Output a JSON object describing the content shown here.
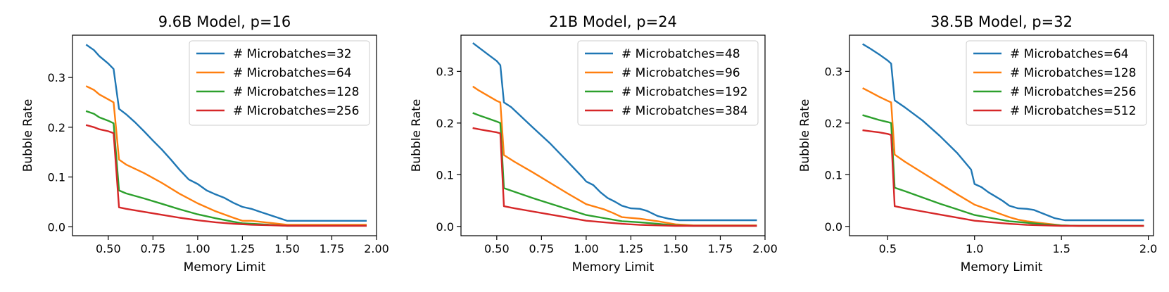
{
  "colors": {
    "blue": "#1f77b4",
    "orange": "#ff7f0e",
    "green": "#2ca02c",
    "red": "#d62728"
  },
  "chart_data": [
    {
      "type": "line",
      "title": "9.6B Model, p=16",
      "xlabel": "Memory Limit",
      "ylabel": "Bubble Rate",
      "xlim": [
        0.3,
        2.0
      ],
      "ylim": [
        -0.018,
        0.385
      ],
      "xticks": [
        0.5,
        0.75,
        1.0,
        1.25,
        1.5,
        1.75,
        2.0
      ],
      "xtick_labels": [
        "0.50",
        "0.75",
        "1.00",
        "1.25",
        "1.50",
        "1.75",
        "2.00"
      ],
      "yticks": [
        0.0,
        0.1,
        0.2,
        0.3
      ],
      "ytick_labels": [
        "0.0",
        "0.1",
        "0.2",
        "0.3"
      ],
      "legend_position": "top-right",
      "series": [
        {
          "name": "# Microbatches=32",
          "color": "#1f77b4",
          "x": [
            0.38,
            0.42,
            0.45,
            0.5,
            0.53,
            0.56,
            0.6,
            0.65,
            0.7,
            0.75,
            0.8,
            0.85,
            0.9,
            0.95,
            1.0,
            1.05,
            1.1,
            1.15,
            1.2,
            1.25,
            1.3,
            1.35,
            1.4,
            1.45,
            1.5,
            1.6,
            1.7,
            1.8,
            1.94
          ],
          "y": [
            0.365,
            0.355,
            0.343,
            0.328,
            0.317,
            0.237,
            0.226,
            0.21,
            0.192,
            0.173,
            0.155,
            0.135,
            0.114,
            0.095,
            0.086,
            0.073,
            0.065,
            0.058,
            0.048,
            0.04,
            0.036,
            0.03,
            0.024,
            0.018,
            0.012,
            0.012,
            0.012,
            0.012,
            0.012
          ]
        },
        {
          "name": "# Microbatches=64",
          "color": "#ff7f0e",
          "x": [
            0.38,
            0.42,
            0.45,
            0.5,
            0.53,
            0.56,
            0.6,
            0.7,
            0.8,
            0.9,
            1.0,
            1.1,
            1.2,
            1.25,
            1.3,
            1.4,
            1.5,
            1.6,
            1.8,
            1.94
          ],
          "y": [
            0.282,
            0.275,
            0.266,
            0.256,
            0.25,
            0.135,
            0.125,
            0.108,
            0.088,
            0.066,
            0.047,
            0.031,
            0.018,
            0.012,
            0.012,
            0.008,
            0.004,
            0.004,
            0.004,
            0.004
          ]
        },
        {
          "name": "# Microbatches=128",
          "color": "#2ca02c",
          "x": [
            0.38,
            0.42,
            0.45,
            0.5,
            0.53,
            0.56,
            0.6,
            0.7,
            0.8,
            0.9,
            1.0,
            1.1,
            1.2,
            1.25,
            1.3,
            1.4,
            1.5,
            1.6,
            1.8,
            1.94
          ],
          "y": [
            0.232,
            0.227,
            0.22,
            0.213,
            0.208,
            0.073,
            0.067,
            0.057,
            0.046,
            0.035,
            0.025,
            0.017,
            0.01,
            0.007,
            0.006,
            0.004,
            0.002,
            0.002,
            0.002,
            0.002
          ]
        },
        {
          "name": "# Microbatches=256",
          "color": "#d62728",
          "x": [
            0.38,
            0.42,
            0.45,
            0.5,
            0.53,
            0.56,
            0.6,
            0.7,
            0.8,
            0.9,
            1.0,
            1.1,
            1.2,
            1.3,
            1.4,
            1.5,
            1.6,
            1.8,
            1.94
          ],
          "y": [
            0.204,
            0.2,
            0.196,
            0.192,
            0.188,
            0.039,
            0.036,
            0.03,
            0.024,
            0.018,
            0.013,
            0.009,
            0.006,
            0.004,
            0.003,
            0.002,
            0.002,
            0.002,
            0.002
          ]
        }
      ]
    },
    {
      "type": "line",
      "title": "21B Model, p=24",
      "xlabel": "Memory Limit",
      "ylabel": "Bubble Rate",
      "xlim": [
        0.3,
        2.0
      ],
      "ylim": [
        -0.018,
        0.37
      ],
      "xticks": [
        0.5,
        0.75,
        1.0,
        1.25,
        1.5,
        1.75,
        2.0
      ],
      "xtick_labels": [
        "0.50",
        "0.75",
        "1.00",
        "1.25",
        "1.50",
        "1.75",
        "2.00"
      ],
      "yticks": [
        0.0,
        0.1,
        0.2,
        0.3
      ],
      "ytick_labels": [
        "0.0",
        "0.1",
        "0.2",
        "0.3"
      ],
      "legend_position": "top-right",
      "series": [
        {
          "name": "# Microbatches=48",
          "color": "#1f77b4",
          "x": [
            0.37,
            0.4,
            0.45,
            0.5,
            0.52,
            0.54,
            0.58,
            0.62,
            0.7,
            0.8,
            0.9,
            0.98,
            1.0,
            1.04,
            1.08,
            1.12,
            1.16,
            1.2,
            1.25,
            1.3,
            1.34,
            1.4,
            1.46,
            1.52,
            1.6,
            1.8,
            1.95
          ],
          "y": [
            0.354,
            0.346,
            0.333,
            0.32,
            0.312,
            0.24,
            0.231,
            0.218,
            0.192,
            0.16,
            0.124,
            0.095,
            0.087,
            0.08,
            0.066,
            0.055,
            0.048,
            0.04,
            0.035,
            0.034,
            0.03,
            0.02,
            0.015,
            0.012,
            0.012,
            0.012,
            0.012
          ]
        },
        {
          "name": "# Microbatches=96",
          "color": "#ff7f0e",
          "x": [
            0.37,
            0.4,
            0.45,
            0.5,
            0.52,
            0.54,
            0.6,
            0.7,
            0.8,
            0.9,
            1.0,
            1.1,
            1.15,
            1.2,
            1.3,
            1.4,
            1.5,
            1.6,
            1.8,
            1.95
          ],
          "y": [
            0.27,
            0.263,
            0.253,
            0.243,
            0.24,
            0.138,
            0.125,
            0.105,
            0.084,
            0.063,
            0.043,
            0.033,
            0.026,
            0.018,
            0.015,
            0.01,
            0.004,
            0.002,
            0.002,
            0.002
          ]
        },
        {
          "name": "# Microbatches=192",
          "color": "#2ca02c",
          "x": [
            0.37,
            0.4,
            0.45,
            0.5,
            0.52,
            0.54,
            0.6,
            0.7,
            0.8,
            0.9,
            1.0,
            1.1,
            1.2,
            1.3,
            1.4,
            1.5,
            1.6,
            1.8,
            1.95
          ],
          "y": [
            0.219,
            0.215,
            0.209,
            0.203,
            0.2,
            0.074,
            0.067,
            0.055,
            0.044,
            0.033,
            0.022,
            0.016,
            0.01,
            0.008,
            0.005,
            0.002,
            0.001,
            0.001,
            0.001
          ]
        },
        {
          "name": "# Microbatches=384",
          "color": "#d62728",
          "x": [
            0.37,
            0.4,
            0.45,
            0.5,
            0.52,
            0.54,
            0.6,
            0.7,
            0.8,
            0.9,
            1.0,
            1.1,
            1.2,
            1.3,
            1.4,
            1.5,
            1.6,
            1.8,
            1.95
          ],
          "y": [
            0.19,
            0.188,
            0.185,
            0.182,
            0.18,
            0.039,
            0.035,
            0.029,
            0.023,
            0.017,
            0.011,
            0.008,
            0.005,
            0.003,
            0.002,
            0.001,
            0.001,
            0.001,
            0.001
          ]
        }
      ]
    },
    {
      "type": "line",
      "title": "38.5B Model, p=32",
      "xlabel": "Memory Limit",
      "ylabel": "Bubble Rate",
      "xlim": [
        0.28,
        2.03
      ],
      "ylim": [
        -0.018,
        0.37
      ],
      "xticks": [
        0.5,
        1.0,
        1.5,
        2.0
      ],
      "xtick_labels": [
        "0.5",
        "1.0",
        "1.5",
        "2.0"
      ],
      "yticks": [
        0.0,
        0.1,
        0.2,
        0.3
      ],
      "ytick_labels": [
        "0.0",
        "0.1",
        "0.2",
        "0.3"
      ],
      "legend_position": "top-right",
      "series": [
        {
          "name": "# Microbatches=64",
          "color": "#1f77b4",
          "x": [
            0.36,
            0.4,
            0.45,
            0.5,
            0.52,
            0.54,
            0.6,
            0.7,
            0.8,
            0.9,
            0.98,
            1.0,
            1.04,
            1.08,
            1.12,
            1.16,
            1.2,
            1.25,
            1.3,
            1.34,
            1.4,
            1.46,
            1.52,
            1.6,
            1.8,
            1.97
          ],
          "y": [
            0.352,
            0.344,
            0.333,
            0.321,
            0.315,
            0.244,
            0.23,
            0.205,
            0.175,
            0.142,
            0.11,
            0.082,
            0.076,
            0.066,
            0.058,
            0.05,
            0.04,
            0.035,
            0.034,
            0.032,
            0.024,
            0.016,
            0.012,
            0.012,
            0.012,
            0.012
          ]
        },
        {
          "name": "# Microbatches=128",
          "color": "#ff7f0e",
          "x": [
            0.36,
            0.4,
            0.45,
            0.5,
            0.52,
            0.54,
            0.6,
            0.7,
            0.8,
            0.9,
            1.0,
            1.1,
            1.2,
            1.25,
            1.3,
            1.4,
            1.5,
            1.6,
            1.8,
            1.97
          ],
          "y": [
            0.267,
            0.26,
            0.251,
            0.243,
            0.24,
            0.139,
            0.125,
            0.104,
            0.083,
            0.062,
            0.042,
            0.03,
            0.018,
            0.013,
            0.01,
            0.006,
            0.002,
            0.001,
            0.001,
            0.001
          ]
        },
        {
          "name": "# Microbatches=256",
          "color": "#2ca02c",
          "x": [
            0.36,
            0.4,
            0.45,
            0.5,
            0.52,
            0.54,
            0.6,
            0.7,
            0.8,
            0.9,
            1.0,
            1.1,
            1.2,
            1.3,
            1.4,
            1.5,
            1.6,
            1.8,
            1.97
          ],
          "y": [
            0.215,
            0.211,
            0.206,
            0.202,
            0.2,
            0.075,
            0.068,
            0.056,
            0.044,
            0.033,
            0.022,
            0.016,
            0.01,
            0.007,
            0.004,
            0.002,
            0.001,
            0.001,
            0.001
          ]
        },
        {
          "name": "# Microbatches=512",
          "color": "#d62728",
          "x": [
            0.36,
            0.4,
            0.45,
            0.5,
            0.52,
            0.54,
            0.6,
            0.7,
            0.8,
            0.9,
            1.0,
            1.1,
            1.2,
            1.3,
            1.4,
            1.5,
            1.6,
            1.8,
            1.97
          ],
          "y": [
            0.186,
            0.184,
            0.182,
            0.179,
            0.177,
            0.039,
            0.035,
            0.029,
            0.023,
            0.017,
            0.011,
            0.008,
            0.005,
            0.003,
            0.002,
            0.001,
            0.001,
            0.001,
            0.001
          ]
        }
      ]
    }
  ]
}
